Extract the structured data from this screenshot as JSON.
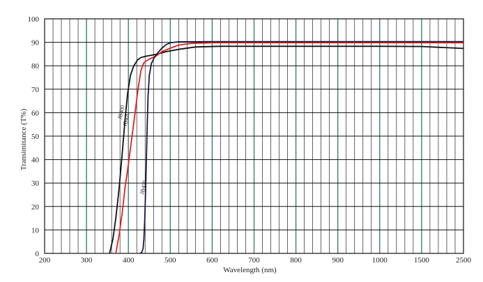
{
  "chart_data": {
    "type": "line",
    "title": "",
    "xlabel": "Wavelength (nm)",
    "ylabel": "Transimitance (T%)",
    "x_ticks": [
      "200",
      "300",
      "400",
      "500",
      "600",
      "700",
      "800",
      "900",
      "1000",
      "1500",
      "2500"
    ],
    "y_ticks": [
      "0",
      "10",
      "20",
      "30",
      "40",
      "50",
      "60",
      "70",
      "80",
      "90",
      "100"
    ],
    "ylim": [
      0,
      100
    ],
    "grid": true,
    "series": [
      {
        "name": "JB400",
        "color": "#111111",
        "points": [
          [
            355,
            0
          ],
          [
            363,
            6
          ],
          [
            370,
            15
          ],
          [
            378,
            28
          ],
          [
            385,
            42
          ],
          [
            392,
            57
          ],
          [
            398,
            68
          ],
          [
            405,
            76
          ],
          [
            413,
            80
          ],
          [
            422,
            82.5
          ],
          [
            430,
            83.5
          ],
          [
            440,
            84
          ],
          [
            455,
            84.5
          ],
          [
            470,
            85
          ],
          [
            490,
            86
          ],
          [
            520,
            87
          ],
          [
            560,
            88
          ],
          [
            620,
            88.3
          ],
          [
            800,
            88.3
          ],
          [
            1000,
            88.3
          ],
          [
            1500,
            88.2
          ],
          [
            2500,
            87.4
          ]
        ]
      },
      {
        "name": "JB420",
        "color": "#e02020",
        "points": [
          [
            370,
            0
          ],
          [
            378,
            8
          ],
          [
            385,
            17
          ],
          [
            392,
            28
          ],
          [
            400,
            38
          ],
          [
            408,
            49
          ],
          [
            416,
            60
          ],
          [
            423,
            70
          ],
          [
            430,
            78
          ],
          [
            436,
            81
          ],
          [
            442,
            82
          ],
          [
            452,
            83
          ],
          [
            465,
            84
          ],
          [
            480,
            86
          ],
          [
            500,
            87.5
          ],
          [
            520,
            88.8
          ],
          [
            550,
            89.5
          ],
          [
            600,
            89.8
          ],
          [
            1000,
            89.8
          ],
          [
            2500,
            89.8
          ]
        ]
      },
      {
        "name": "JB450",
        "color": "#1a1a40",
        "points": [
          [
            428,
            0
          ],
          [
            432,
            0.5
          ],
          [
            435,
            2
          ],
          [
            437,
            6
          ],
          [
            439,
            14
          ],
          [
            441,
            26
          ],
          [
            443,
            40
          ],
          [
            445,
            55
          ],
          [
            447,
            67
          ],
          [
            450,
            76
          ],
          [
            455,
            81
          ],
          [
            462,
            83.5
          ],
          [
            470,
            85.5
          ],
          [
            480,
            87.5
          ],
          [
            490,
            89
          ],
          [
            500,
            89.8
          ],
          [
            520,
            90.2
          ],
          [
            600,
            90.3
          ],
          [
            1000,
            90.3
          ],
          [
            2500,
            90.3
          ]
        ]
      }
    ]
  }
}
